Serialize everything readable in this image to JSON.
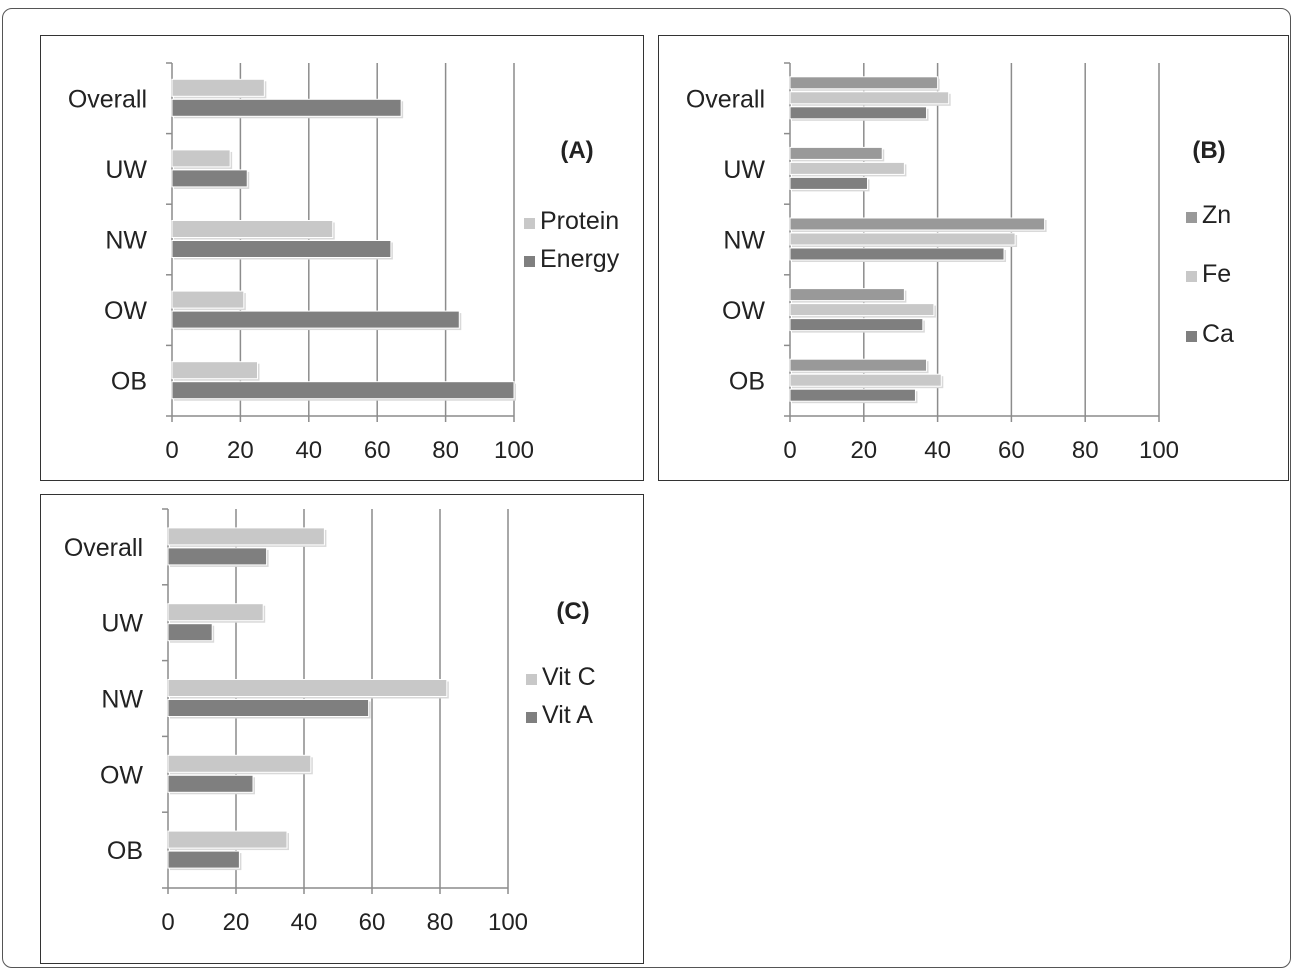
{
  "chart_data": [
    {
      "type": "bar",
      "panel_label": "(A)",
      "orientation": "horizontal",
      "categories": [
        "Overall",
        "UW",
        "NW",
        "OW",
        "OB"
      ],
      "series": [
        {
          "name": "Protein",
          "values": [
            27,
            17,
            47,
            21,
            25
          ],
          "color": "#c8c8c8"
        },
        {
          "name": "Energy",
          "values": [
            67,
            22,
            64,
            84,
            100
          ],
          "color": "#7f7f7f"
        }
      ],
      "x_ticks": [
        0,
        20,
        40,
        60,
        80,
        100
      ],
      "xlim": [
        0,
        100
      ],
      "grid": "vertical",
      "legend_position": "right"
    },
    {
      "type": "bar",
      "panel_label": "(B)",
      "orientation": "horizontal",
      "categories": [
        "Overall",
        "UW",
        "NW",
        "OW",
        "OB"
      ],
      "series": [
        {
          "name": "Zn",
          "values": [
            40,
            25,
            69,
            31,
            37
          ],
          "color": "#999999"
        },
        {
          "name": "Fe",
          "values": [
            43,
            31,
            61,
            39,
            41
          ],
          "color": "#c8c8c8"
        },
        {
          "name": "Ca",
          "values": [
            37,
            21,
            58,
            36,
            34
          ],
          "color": "#7f7f7f"
        }
      ],
      "x_ticks": [
        0,
        20,
        40,
        60,
        80,
        100
      ],
      "xlim": [
        0,
        100
      ],
      "grid": "vertical",
      "legend_position": "right"
    },
    {
      "type": "bar",
      "panel_label": "(C)",
      "orientation": "horizontal",
      "categories": [
        "Overall",
        "UW",
        "NW",
        "OW",
        "OB"
      ],
      "series": [
        {
          "name": "Vit C",
          "values": [
            46,
            28,
            82,
            42,
            35
          ],
          "color": "#c8c8c8"
        },
        {
          "name": "Vit A",
          "values": [
            29,
            13,
            59,
            25,
            21
          ],
          "color": "#7f7f7f"
        }
      ],
      "x_ticks": [
        0,
        20,
        40,
        60,
        80,
        100
      ],
      "xlim": [
        0,
        100
      ],
      "grid": "vertical",
      "legend_position": "right"
    }
  ]
}
